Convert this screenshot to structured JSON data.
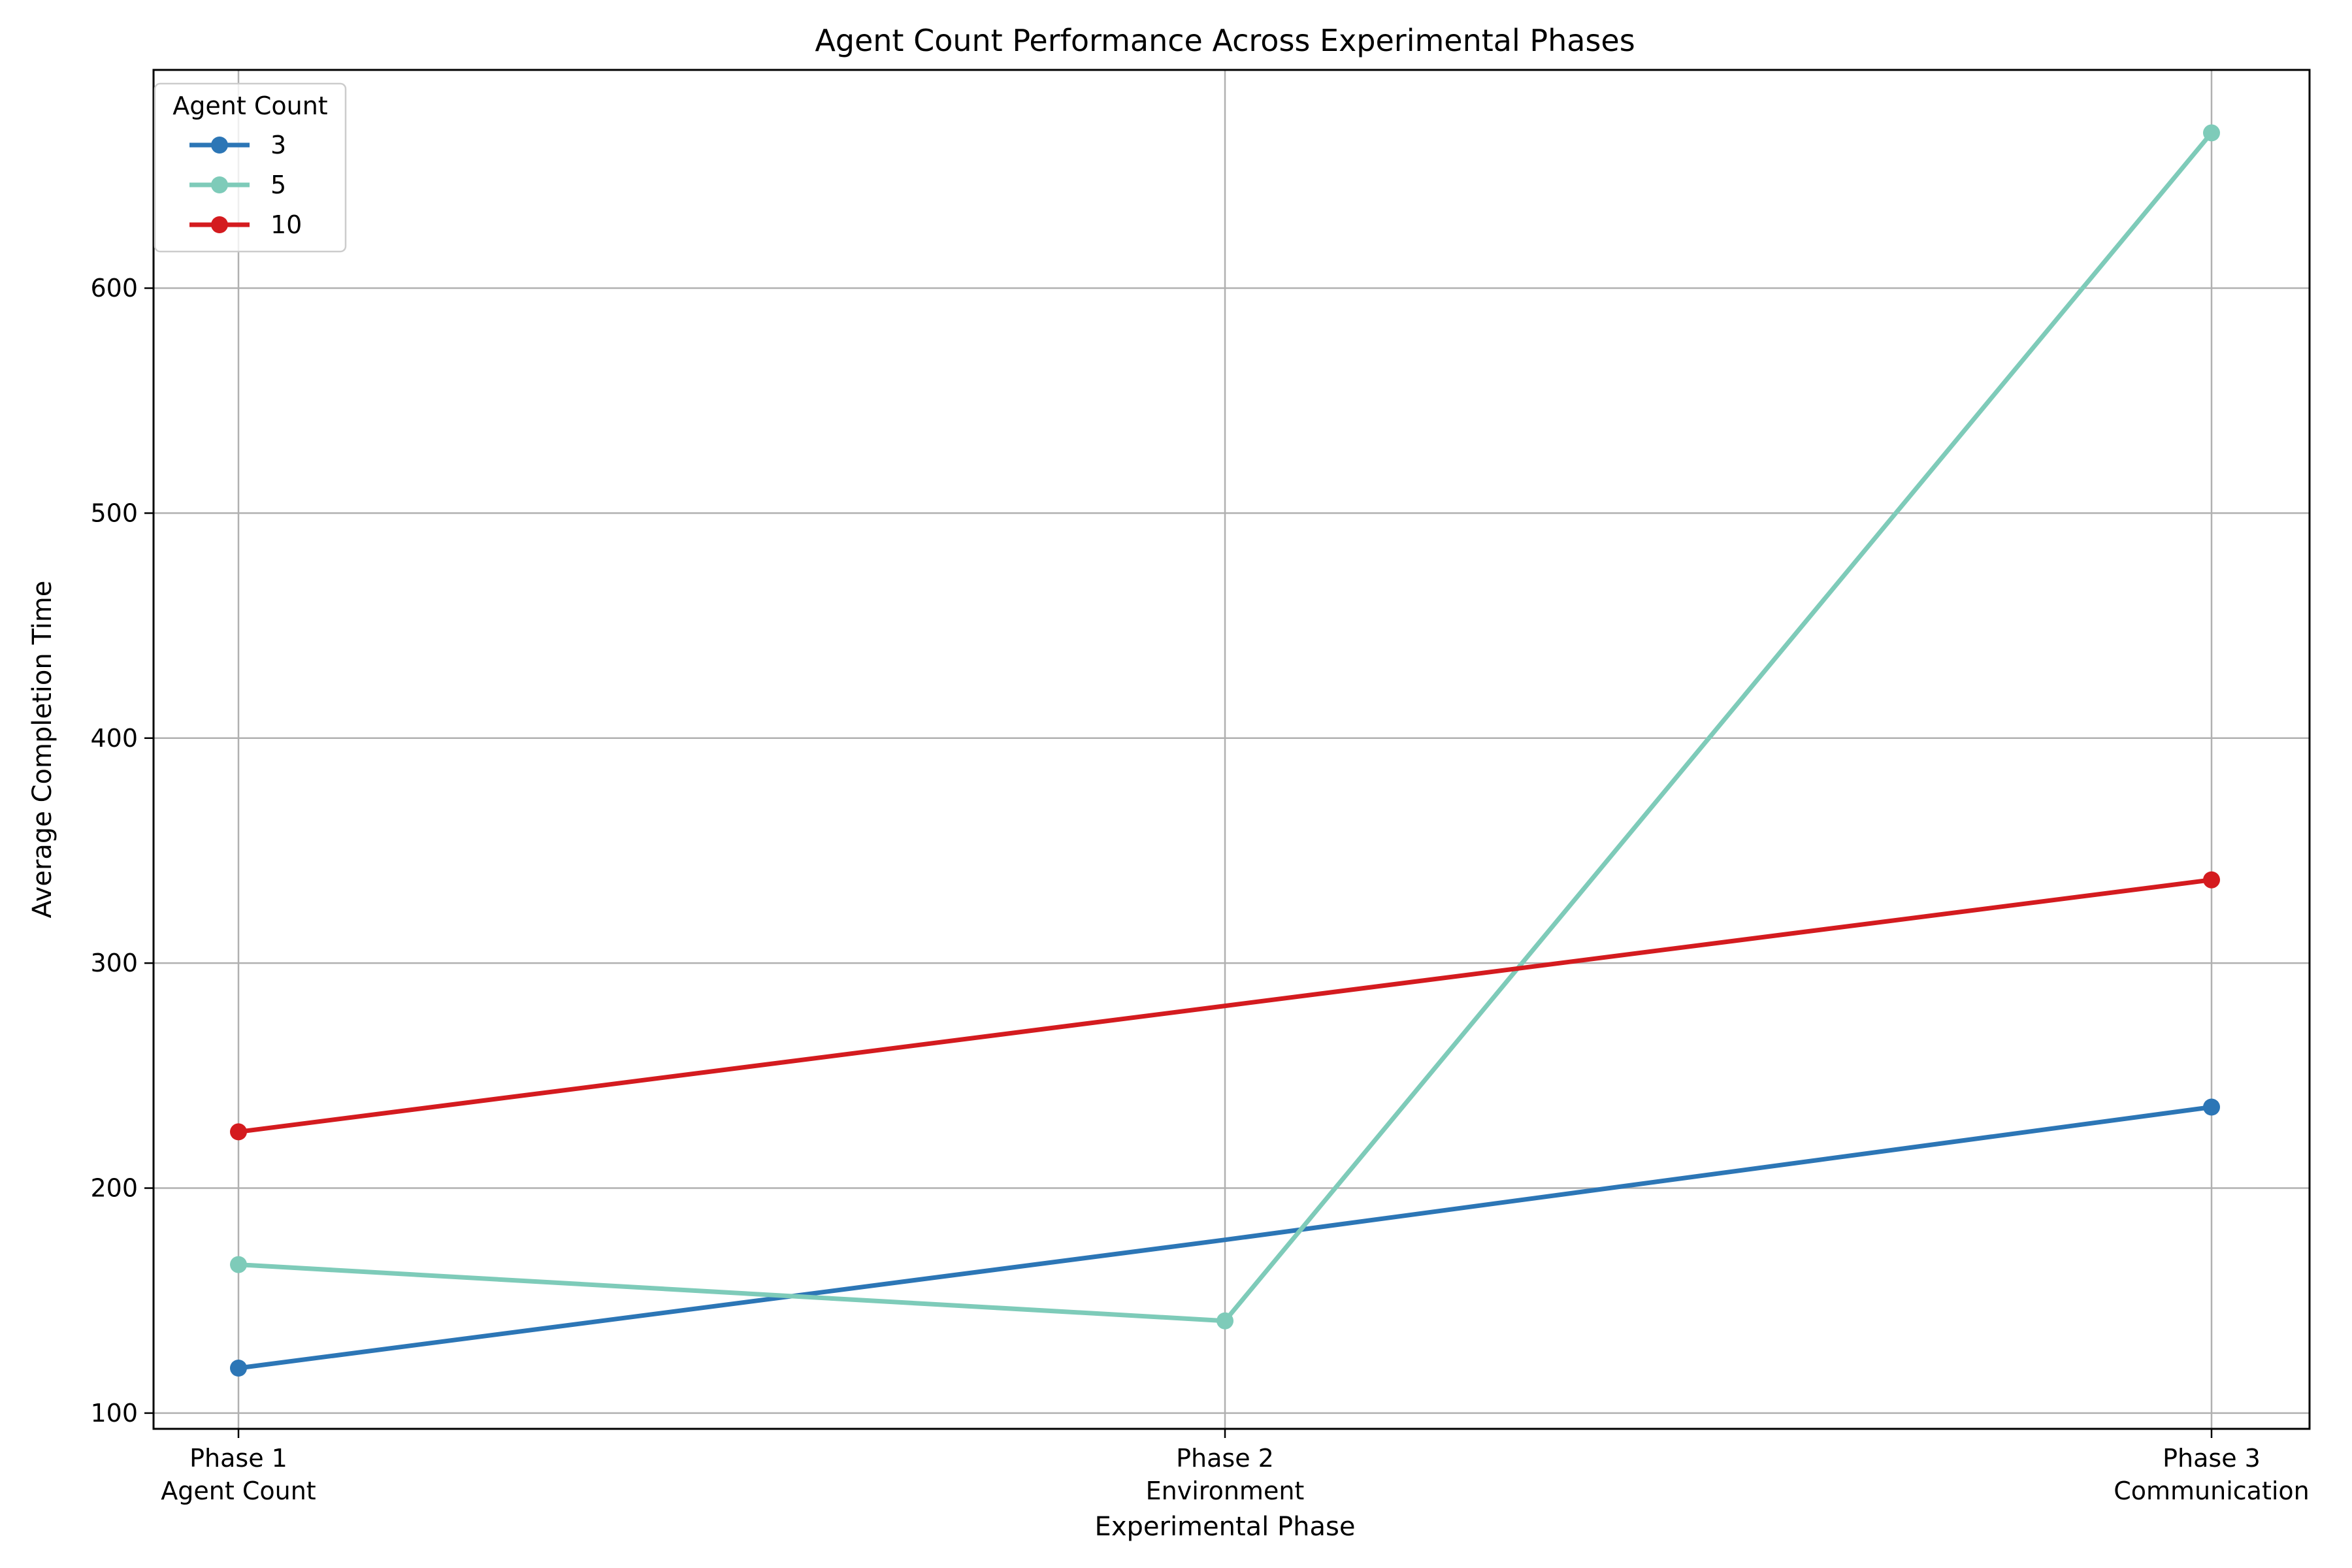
{
  "chart_data": {
    "type": "line",
    "title": "Agent Count Performance Across Experimental Phases",
    "xlabel": "Experimental Phase",
    "ylabel": "Average Completion Time",
    "categories": [
      [
        "Phase 1",
        "Agent Count"
      ],
      [
        "Phase 2",
        "Environment"
      ],
      [
        "Phase 3",
        "Communication"
      ]
    ],
    "yticks": [
      100,
      200,
      300,
      400,
      500,
      600
    ],
    "ylim": [
      93,
      697
    ],
    "grid": true,
    "legend": {
      "title": "Agent Count",
      "placement": "upper-left"
    },
    "series": [
      {
        "name": "3",
        "color": "#2c76b6",
        "values": [
          120,
          177,
          236
        ],
        "markers": [
          true,
          false,
          true
        ]
      },
      {
        "name": "5",
        "color": "#7ecbb9",
        "values": [
          166,
          141,
          669
        ],
        "markers": [
          true,
          true,
          true
        ]
      },
      {
        "name": "10",
        "color": "#d41b1f",
        "values": [
          225,
          281,
          337
        ],
        "markers": [
          true,
          false,
          true
        ]
      }
    ]
  }
}
